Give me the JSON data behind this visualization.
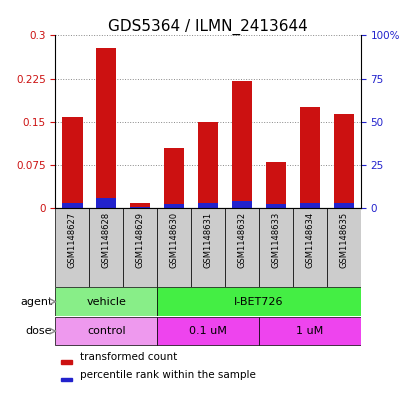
{
  "title": "GDS5364 / ILMN_2413644",
  "samples": [
    "GSM1148627",
    "GSM1148628",
    "GSM1148629",
    "GSM1148630",
    "GSM1148631",
    "GSM1148632",
    "GSM1148633",
    "GSM1148634",
    "GSM1148635"
  ],
  "red_values": [
    0.158,
    0.278,
    0.01,
    0.105,
    0.15,
    0.22,
    0.08,
    0.175,
    0.163
  ],
  "blue_values": [
    0.01,
    0.018,
    0.003,
    0.008,
    0.01,
    0.013,
    0.007,
    0.01,
    0.01
  ],
  "ylim_left": [
    0,
    0.3
  ],
  "ylim_right": [
    0,
    100
  ],
  "yticks_left": [
    0,
    0.075,
    0.15,
    0.225,
    0.3
  ],
  "yticks_right": [
    0,
    25,
    50,
    75,
    100
  ],
  "ytick_labels_left": [
    "0",
    "0.075",
    "0.15",
    "0.225",
    "0.3"
  ],
  "ytick_labels_right": [
    "0",
    "25",
    "50",
    "75",
    "100%"
  ],
  "bar_color_red": "#cc1111",
  "bar_color_blue": "#2222cc",
  "bar_width": 0.6,
  "agent_labels": [
    "vehicle",
    "I-BET726"
  ],
  "agent_color_1": "#88ee88",
  "agent_color_2": "#44ee44",
  "dose_labels": [
    "control",
    "0.1 uM",
    "1 uM"
  ],
  "dose_color_1": "#ee99ee",
  "dose_color_2": "#ee44ee",
  "sample_bg": "#cccccc",
  "grid_color": "#888888",
  "background_color": "#ffffff",
  "title_fontsize": 11,
  "tick_label_fontsize": 7.5,
  "legend_fontsize": 7.5
}
